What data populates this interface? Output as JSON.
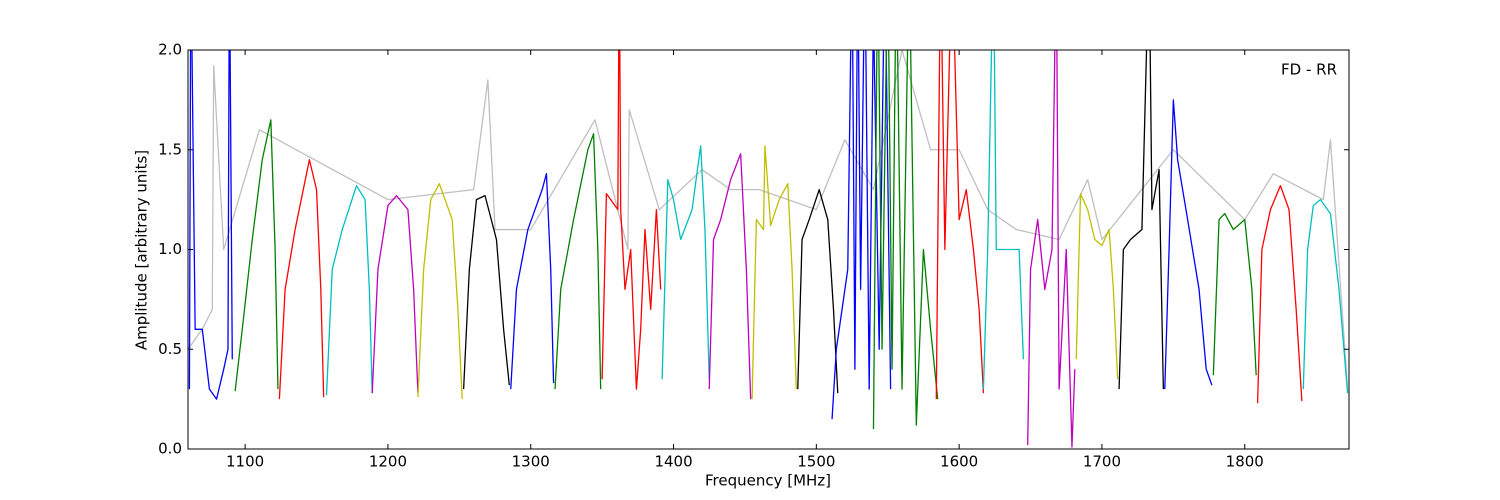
{
  "chart_data": {
    "type": "line",
    "xlabel": "Frequency [MHz]",
    "ylabel": "Amplitude [arbitrary units]",
    "annotation": "FD - RR",
    "xlim": [
      1060,
      1873
    ],
    "ylim": [
      0,
      2
    ],
    "xticks": [
      1100,
      1200,
      1300,
      1400,
      1500,
      1600,
      1700,
      1800
    ],
    "yticks": [
      {
        "value": 0,
        "label": "0.0"
      },
      0.5,
      {
        "value": 1,
        "label": "1.0"
      },
      1.5,
      {
        "value": 2,
        "label": "2.0"
      }
    ],
    "series": [
      {
        "color": "#bfbfbf",
        "x": [
          1060,
          1070,
          1077,
          1078,
          1085,
          1110,
          1200,
          1260,
          1270,
          1275,
          1300,
          1345,
          1368,
          1369,
          1390,
          1420,
          1440,
          1460,
          1500,
          1520,
          1540,
          1560,
          1580,
          1600,
          1620,
          1640,
          1670,
          1690,
          1700,
          1750,
          1800,
          1820,
          1855,
          1860,
          1872
        ],
        "values": [
          0.5,
          0.6,
          0.7,
          1.92,
          1.0,
          1.6,
          1.25,
          1.3,
          1.85,
          1.1,
          1.1,
          1.65,
          1.0,
          1.7,
          1.2,
          1.4,
          1.3,
          1.3,
          1.2,
          1.55,
          1.3,
          2.0,
          1.5,
          1.5,
          1.2,
          1.1,
          1.05,
          1.35,
          1.05,
          1.5,
          1.15,
          1.38,
          1.25,
          1.55,
          0.3
        ]
      },
      {
        "color": "#0000ff",
        "x": [
          1061,
          1062,
          1065,
          1070,
          1075,
          1080,
          1085,
          1088,
          1089,
          1091
        ],
        "values": [
          0.3,
          2.5,
          0.6,
          0.6,
          0.3,
          0.25,
          0.4,
          0.5,
          2.5,
          0.45
        ]
      },
      {
        "color": "#008000",
        "x": [
          1093,
          1098,
          1105,
          1112,
          1118,
          1121,
          1123
        ],
        "values": [
          0.29,
          0.6,
          1.05,
          1.45,
          1.65,
          1.0,
          0.3
        ]
      },
      {
        "color": "#ff0000",
        "x": [
          1124,
          1128,
          1135,
          1145,
          1150,
          1153,
          1155
        ],
        "values": [
          0.25,
          0.8,
          1.1,
          1.45,
          1.3,
          0.8,
          0.26
        ]
      },
      {
        "color": "#00bfbf",
        "x": [
          1157,
          1161,
          1168,
          1178,
          1184,
          1187,
          1189
        ],
        "values": [
          0.27,
          0.9,
          1.1,
          1.32,
          1.25,
          0.8,
          0.28
        ]
      },
      {
        "color": "#bf00bf",
        "x": [
          1189,
          1193,
          1200,
          1206,
          1214,
          1218,
          1221
        ],
        "values": [
          0.28,
          0.9,
          1.22,
          1.27,
          1.2,
          0.8,
          0.28
        ]
      },
      {
        "color": "#bfbf00",
        "x": [
          1221,
          1225,
          1230,
          1236,
          1245,
          1249,
          1252
        ],
        "values": [
          0.26,
          0.9,
          1.25,
          1.33,
          1.15,
          0.7,
          0.25
        ]
      },
      {
        "color": "#000000",
        "x": [
          1253,
          1257,
          1262,
          1268,
          1276,
          1281,
          1285
        ],
        "values": [
          0.3,
          0.9,
          1.25,
          1.27,
          1.05,
          0.6,
          0.32
        ]
      },
      {
        "color": "#0000ff",
        "x": [
          1286,
          1290,
          1298,
          1308,
          1311,
          1314,
          1316
        ],
        "values": [
          0.3,
          0.8,
          1.1,
          1.3,
          1.38,
          0.9,
          0.33
        ]
      },
      {
        "color": "#008000",
        "x": [
          1317,
          1321,
          1330,
          1340,
          1344,
          1347,
          1349
        ],
        "values": [
          0.3,
          0.8,
          1.15,
          1.5,
          1.58,
          1.0,
          0.3
        ]
      },
      {
        "color": "#ff0000",
        "x": [
          1350,
          1353,
          1361,
          1362,
          1363,
          1366,
          1370,
          1374,
          1377,
          1380,
          1384,
          1388,
          1391
        ],
        "values": [
          0.35,
          1.28,
          1.2,
          2.5,
          1.2,
          0.8,
          1.0,
          0.3,
          0.6,
          1.1,
          0.7,
          1.2,
          0.8
        ]
      },
      {
        "color": "#00bfbf",
        "x": [
          1392,
          1396,
          1400,
          1405,
          1413,
          1419,
          1422,
          1425
        ],
        "values": [
          0.35,
          1.35,
          1.25,
          1.05,
          1.2,
          1.52,
          1.1,
          0.35
        ]
      },
      {
        "color": "#bf00bf",
        "x": [
          1425,
          1428,
          1433,
          1440,
          1447,
          1451,
          1454
        ],
        "values": [
          0.3,
          1.05,
          1.15,
          1.35,
          1.48,
          0.9,
          0.25
        ]
      },
      {
        "color": "#bfbf00",
        "x": [
          1455,
          1458,
          1463,
          1464,
          1468,
          1474,
          1480,
          1483,
          1486
        ],
        "values": [
          0.25,
          1.15,
          1.1,
          1.52,
          1.12,
          1.25,
          1.33,
          0.9,
          0.3
        ]
      },
      {
        "color": "#000000",
        "x": [
          1487,
          1490,
          1495,
          1502,
          1508,
          1512,
          1515
        ],
        "values": [
          0.3,
          1.05,
          1.15,
          1.3,
          1.15,
          0.7,
          0.28
        ]
      },
      {
        "color": "#0000ff",
        "x": [
          1511,
          1514,
          1518,
          1522,
          1525,
          1527,
          1529,
          1531,
          1534,
          1537,
          1540,
          1544,
          1548,
          1552
        ],
        "values": [
          0.15,
          0.5,
          0.7,
          0.9,
          2.5,
          0.4,
          2.5,
          0.8,
          2.5,
          0.3,
          2.2,
          0.5,
          2.5,
          0.3
        ]
      },
      {
        "color": "#008000",
        "x": [
          1540,
          1543,
          1546,
          1550,
          1553,
          1556,
          1560,
          1565,
          1570,
          1575,
          1580,
          1585
        ],
        "values": [
          0.1,
          2.5,
          0.5,
          2.5,
          0.4,
          2.5,
          0.3,
          2.5,
          0.12,
          1.0,
          0.6,
          0.25
        ]
      },
      {
        "color": "#ff0000",
        "x": [
          1584,
          1587,
          1590,
          1595,
          1600,
          1605,
          1610,
          1614,
          1617
        ],
        "values": [
          0.25,
          2.5,
          1.0,
          2.5,
          1.15,
          1.3,
          1.0,
          0.7,
          0.28
        ]
      },
      {
        "color": "#00bfbf",
        "x": [
          1617,
          1620,
          1624,
          1626,
          1629,
          1635,
          1642,
          1645
        ],
        "values": [
          0.3,
          1.0,
          2.5,
          1.0,
          1.0,
          1.0,
          1.0,
          0.45
        ]
      },
      {
        "color": "#bf00bf",
        "x": [
          1648,
          1650,
          1655,
          1660,
          1665,
          1668,
          1670,
          1675,
          1679,
          1681
        ],
        "values": [
          0.02,
          0.9,
          1.15,
          0.8,
          1.0,
          2.5,
          0.3,
          1.0,
          0.01,
          0.4
        ]
      },
      {
        "color": "#bfbf00",
        "x": [
          1682,
          1685,
          1690,
          1695,
          1700,
          1705,
          1708,
          1711
        ],
        "values": [
          0.45,
          1.28,
          1.2,
          1.05,
          1.02,
          1.1,
          0.8,
          0.35
        ]
      },
      {
        "color": "#000000",
        "x": [
          1712,
          1715,
          1720,
          1728,
          1733,
          1735,
          1740,
          1743
        ],
        "values": [
          0.3,
          1.0,
          1.05,
          1.1,
          2.5,
          1.2,
          1.4,
          0.3
        ]
      },
      {
        "color": "#0000ff",
        "x": [
          1744,
          1747,
          1750,
          1753,
          1760,
          1768,
          1773,
          1777
        ],
        "values": [
          0.3,
          1.0,
          1.75,
          1.45,
          1.15,
          0.8,
          0.4,
          0.32
        ]
      },
      {
        "color": "#008000",
        "x": [
          1778,
          1782,
          1786,
          1792,
          1800,
          1805,
          1808
        ],
        "values": [
          0.37,
          1.15,
          1.18,
          1.1,
          1.15,
          0.8,
          0.37
        ]
      },
      {
        "color": "#ff0000",
        "x": [
          1809,
          1812,
          1818,
          1825,
          1831,
          1836,
          1840
        ],
        "values": [
          0.23,
          1.0,
          1.2,
          1.32,
          1.2,
          0.7,
          0.24
        ]
      },
      {
        "color": "#00bfbf",
        "x": [
          1841,
          1844,
          1848,
          1853,
          1860,
          1866,
          1872
        ],
        "values": [
          0.3,
          1.0,
          1.22,
          1.25,
          1.18,
          0.8,
          0.28
        ]
      }
    ]
  }
}
